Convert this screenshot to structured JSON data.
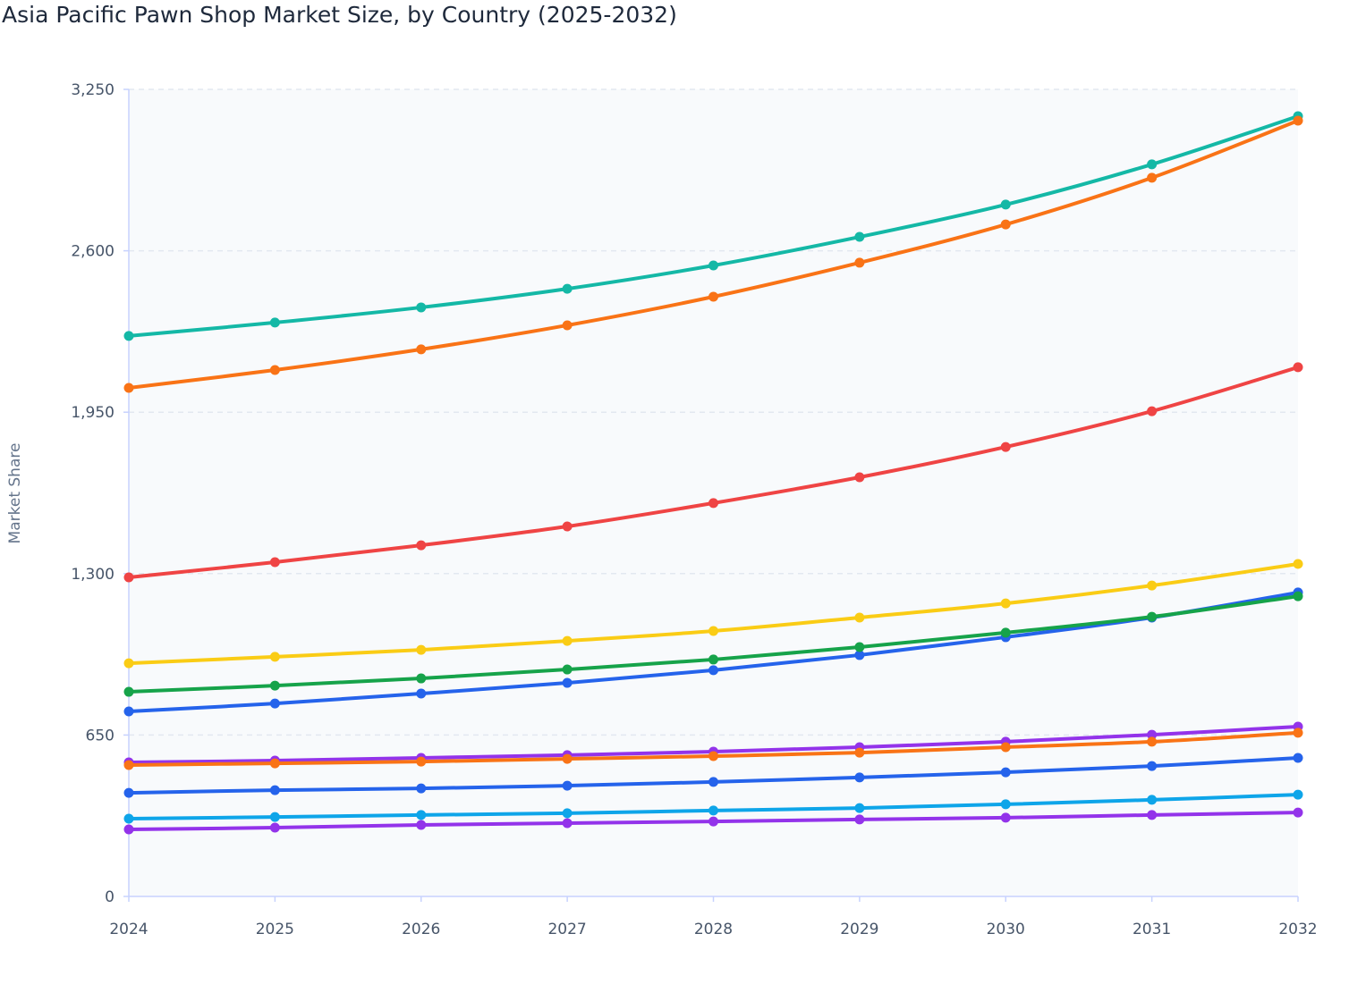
{
  "chart_data": {
    "type": "line",
    "title": "Asia Pacific Pawn Shop Market Size, by Country (2025-2032)",
    "xlabel": "",
    "ylabel": "Market Share",
    "x": [
      "2024",
      "2025",
      "2026",
      "2027",
      "2028",
      "2029",
      "2030",
      "2031",
      "2032"
    ],
    "ylim": [
      0,
      3250
    ],
    "yticks": [
      0,
      650,
      1300,
      1950,
      2600,
      3250
    ],
    "ytick_labels": [
      "0",
      "650",
      "1,300",
      "1,950",
      "2,600",
      "3,250"
    ],
    "grid": true,
    "legend": "none",
    "markers": true,
    "series": [
      {
        "color": "#14b8a6",
        "values": [
          2257,
          2311,
          2372,
          2447,
          2541,
          2656,
          2786,
          2948,
          3142
        ]
      },
      {
        "color": "#f97316",
        "values": [
          2048,
          2120,
          2203,
          2300,
          2415,
          2552,
          2706,
          2894,
          3124
        ]
      },
      {
        "color": "#ef4444",
        "values": [
          1285,
          1346,
          1414,
          1490,
          1584,
          1688,
          1810,
          1954,
          2131
        ]
      },
      {
        "color": "#facc15",
        "values": [
          939,
          965,
          993,
          1029,
          1069,
          1123,
          1180,
          1252,
          1339
        ]
      },
      {
        "color": "#2563eb",
        "values": [
          745,
          777,
          817,
          860,
          911,
          972,
          1044,
          1123,
          1224
        ]
      },
      {
        "color": "#16a34a",
        "values": [
          824,
          849,
          878,
          914,
          954,
          1004,
          1062,
          1126,
          1209
        ]
      },
      {
        "color": "#9333ea",
        "values": [
          540,
          547,
          558,
          569,
          583,
          601,
          623,
          651,
          684
        ]
      },
      {
        "color": "#f97316",
        "values": [
          529,
          536,
          543,
          554,
          565,
          579,
          601,
          623,
          659
        ]
      },
      {
        "color": "#2563eb",
        "values": [
          417,
          428,
          435,
          446,
          461,
          479,
          500,
          525,
          558
        ]
      },
      {
        "color": "#0ea5e9",
        "values": [
          313,
          320,
          328,
          335,
          346,
          356,
          371,
          389,
          410
        ]
      },
      {
        "color": "#9333ea",
        "values": [
          270,
          277,
          288,
          295,
          302,
          310,
          317,
          328,
          338
        ]
      }
    ]
  }
}
